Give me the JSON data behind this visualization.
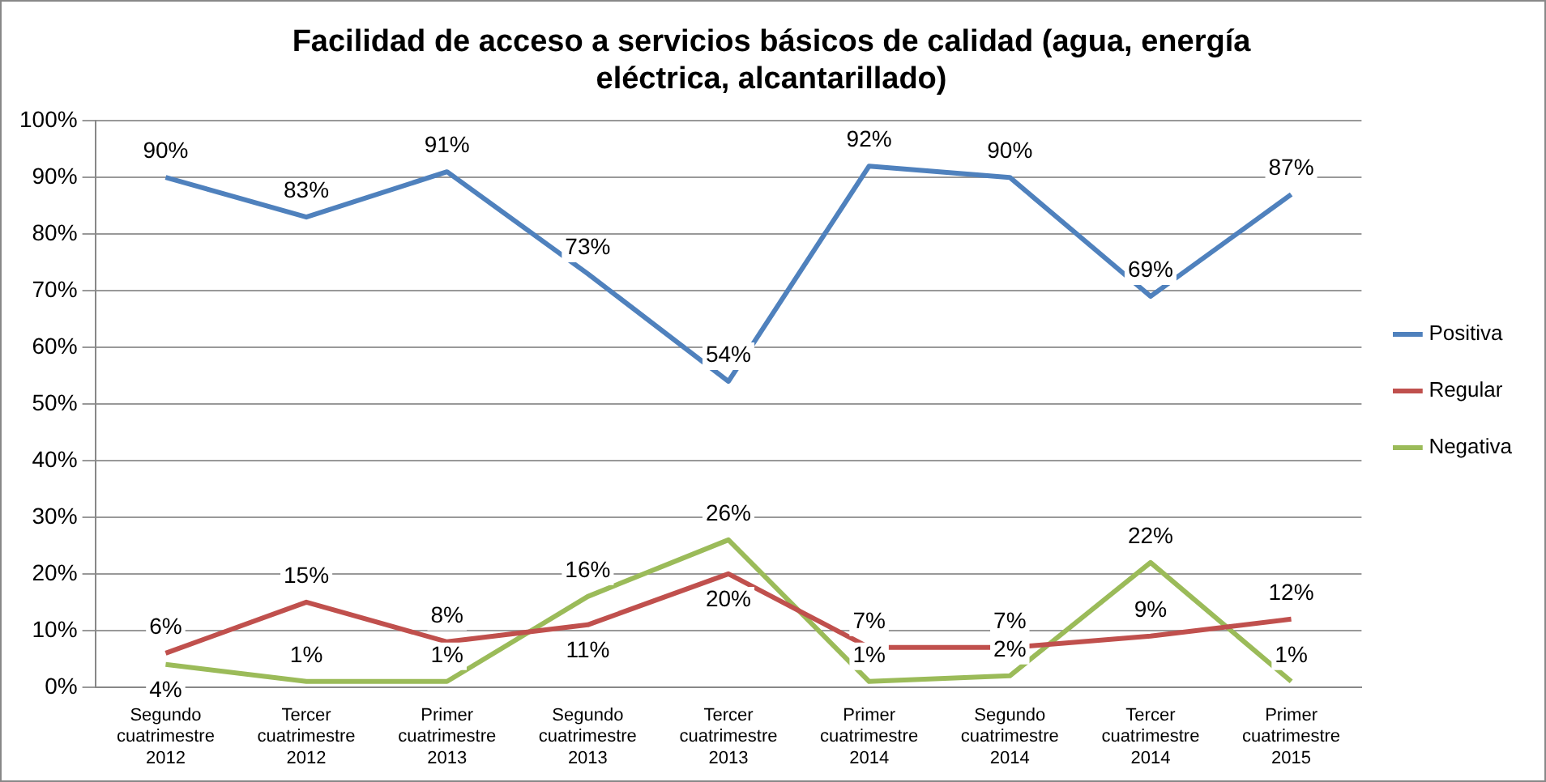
{
  "chart_data": {
    "type": "line",
    "title": "Facilidad de acceso a servicios básicos de calidad (agua, energía eléctrica, alcantarillado)",
    "categories": [
      "Segundo cuatrimestre 2012",
      "Tercer cuatrimestre 2012",
      "Primer cuatrimestre 2013",
      "Segundo cuatrimestre 2013",
      "Tercer cuatrimestre 2013",
      "Primer cuatrimestre 2014",
      "Segundo cuatrimestre 2014",
      "Tercer cuatrimestre 2014",
      "Primer cuatrimestre 2015"
    ],
    "series": [
      {
        "name": "Positiva",
        "color": "#4f81bd",
        "values": [
          90,
          83,
          91,
          73,
          54,
          92,
          90,
          69,
          87
        ],
        "value_labels": [
          "90%",
          "83%",
          "91%",
          "73%",
          "54%",
          "92%",
          "90%",
          "69%",
          "87%"
        ]
      },
      {
        "name": "Regular",
        "color": "#c0504d",
        "values": [
          6,
          15,
          8,
          11,
          20,
          7,
          7,
          9,
          12
        ],
        "value_labels": [
          "6%",
          "15%",
          "8%",
          "11%",
          "20%",
          "7%",
          "7%",
          "9%",
          "12%"
        ]
      },
      {
        "name": "Negativa",
        "color": "#9bbb59",
        "values": [
          4,
          1,
          1,
          16,
          26,
          1,
          2,
          22,
          1
        ],
        "value_labels": [
          "4%",
          "1%",
          "1%",
          "16%",
          "26%",
          "1%",
          "2%",
          "22%",
          "1%"
        ]
      }
    ],
    "ylim": [
      0,
      100
    ],
    "yticks": [
      {
        "value": 0,
        "label": "0%"
      },
      {
        "value": 10,
        "label": "10%"
      },
      {
        "value": 20,
        "label": "20%"
      },
      {
        "value": 30,
        "label": "30%"
      },
      {
        "value": 40,
        "label": "40%"
      },
      {
        "value": 50,
        "label": "50%"
      },
      {
        "value": 60,
        "label": "60%"
      },
      {
        "value": 70,
        "label": "70%"
      },
      {
        "value": 80,
        "label": "80%"
      },
      {
        "value": 90,
        "label": "90%"
      },
      {
        "value": 100,
        "label": "100%"
      }
    ],
    "grid": "y",
    "legend": "right",
    "marker": "none",
    "line_style": "solid"
  }
}
